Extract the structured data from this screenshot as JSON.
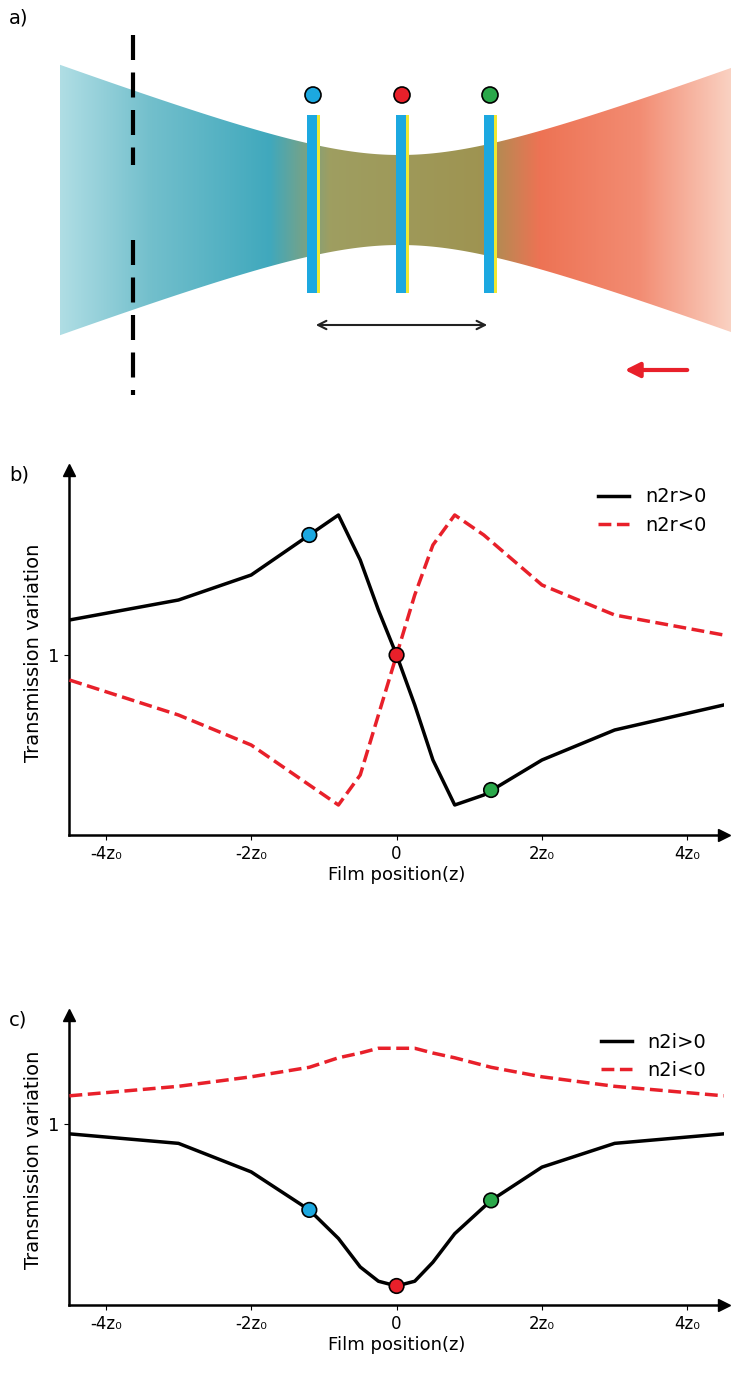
{
  "diagram": {
    "label": "a)"
  },
  "chart_data": [
    {
      "type": "line",
      "title": "b)",
      "x_label": "Film position(z)",
      "y_label": "Transmission variation",
      "xlim": [
        -4.5,
        4.5
      ],
      "xticks": [
        {
          "value": -4,
          "label": "-4z₀"
        },
        {
          "value": -2,
          "label": "-2z₀"
        },
        0,
        {
          "value": 2,
          "label": "2z₀"
        },
        {
          "value": 4,
          "label": "4z₀"
        }
      ],
      "ylim": [
        0.64,
        1.37
      ],
      "yticks": [
        1
      ],
      "legend": "upper right",
      "series": [
        {
          "name": "n2r>0",
          "color": "#000000",
          "line_style": "solid",
          "x": [
            -4.5,
            -3,
            -2,
            -1.2,
            -0.8,
            -0.5,
            -0.25,
            0,
            0.25,
            0.5,
            0.8,
            1.2,
            2,
            3,
            4.5
          ],
          "values": [
            1.07,
            1.11,
            1.16,
            1.24,
            1.28,
            1.19,
            1.09,
            1.0,
            0.9,
            0.79,
            0.7,
            0.72,
            0.79,
            0.85,
            0.9
          ]
        },
        {
          "name": "n2r<0",
          "color": "#e8202a",
          "line_style": "dashed",
          "x": [
            -4.5,
            -3,
            -2,
            -1.2,
            -0.8,
            -0.5,
            -0.25,
            0,
            0.25,
            0.5,
            0.8,
            1.2,
            2,
            3,
            4.5
          ],
          "values": [
            0.95,
            0.88,
            0.82,
            0.74,
            0.7,
            0.76,
            0.88,
            1.0,
            1.12,
            1.22,
            1.28,
            1.24,
            1.14,
            1.08,
            1.04
          ]
        },
        {
          "type": "scatter",
          "marker": "circle",
          "colors": [
            "#1ca8e0",
            "#e8202a",
            "#2aa84a"
          ],
          "x": [
            -1.2,
            0,
            1.3
          ],
          "values": [
            1.24,
            1.0,
            0.73
          ]
        }
      ]
    },
    {
      "type": "line",
      "title": "c)",
      "x_label": "Film position(z)",
      "y_label": "Transmission variation",
      "xlim": [
        -4.5,
        4.5
      ],
      "xticks": [
        {
          "value": -4,
          "label": "-4z₀"
        },
        {
          "value": -2,
          "label": "-2z₀"
        },
        0,
        {
          "value": 2,
          "label": "2z₀"
        },
        {
          "value": 4,
          "label": "4z₀"
        }
      ],
      "ylim": [
        0.62,
        1.23
      ],
      "yticks": [
        1
      ],
      "legend": "upper right",
      "series": [
        {
          "name": "n2i>0",
          "color": "#000000",
          "line_style": "solid",
          "x": [
            -4.5,
            -3,
            -2,
            -1.2,
            -0.8,
            -0.5,
            -0.25,
            0,
            0.25,
            0.5,
            0.8,
            1.3,
            2,
            3,
            4.5
          ],
          "values": [
            0.98,
            0.96,
            0.9,
            0.82,
            0.76,
            0.7,
            0.67,
            0.66,
            0.67,
            0.71,
            0.77,
            0.84,
            0.91,
            0.96,
            0.98
          ]
        },
        {
          "name": "n2i<0",
          "color": "#e8202a",
          "line_style": "dashed",
          "x": [
            -4.5,
            -3,
            -2,
            -1.2,
            -0.8,
            -0.5,
            -0.25,
            0,
            0.25,
            0.5,
            0.8,
            1.3,
            2,
            3,
            4.5
          ],
          "values": [
            1.06,
            1.08,
            1.1,
            1.12,
            1.14,
            1.15,
            1.16,
            1.16,
            1.16,
            1.15,
            1.14,
            1.12,
            1.1,
            1.08,
            1.06
          ]
        },
        {
          "type": "scatter",
          "marker": "circle",
          "colors": [
            "#1ca8e0",
            "#e8202a",
            "#2aa84a"
          ],
          "x": [
            -1.2,
            0,
            1.3
          ],
          "values": [
            0.82,
            0.66,
            0.84
          ]
        }
      ]
    }
  ]
}
